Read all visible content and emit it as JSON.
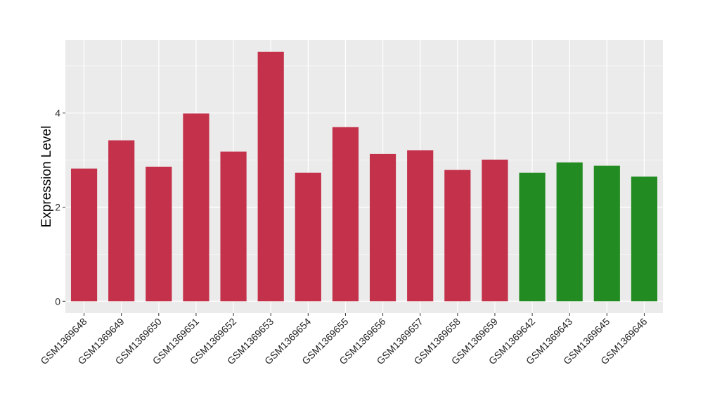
{
  "chart_data": {
    "type": "bar",
    "title": "",
    "xlabel": "",
    "ylabel": "Expression Level",
    "ylim": [
      -0.25,
      5.55
    ],
    "yticks": [
      0,
      2,
      4
    ],
    "grid": true,
    "categories": [
      "GSM1369648",
      "GSM1369649",
      "GSM1369650",
      "GSM1369651",
      "GSM1369652",
      "GSM1369653",
      "GSM1369654",
      "GSM1369655",
      "GSM1369656",
      "GSM1369657",
      "GSM1369658",
      "GSM1369659",
      "GSM1369642",
      "GSM1369643",
      "GSM1369645",
      "GSM1369646"
    ],
    "values": [
      2.82,
      3.42,
      2.86,
      3.99,
      3.18,
      5.3,
      2.73,
      3.7,
      3.13,
      3.21,
      2.79,
      3.01,
      2.73,
      2.95,
      2.88,
      2.65
    ],
    "groups": [
      "a",
      "a",
      "a",
      "a",
      "a",
      "a",
      "a",
      "a",
      "a",
      "a",
      "a",
      "a",
      "b",
      "b",
      "b",
      "b"
    ],
    "colors": {
      "a": "#C4314B",
      "b": "#228B22"
    }
  }
}
